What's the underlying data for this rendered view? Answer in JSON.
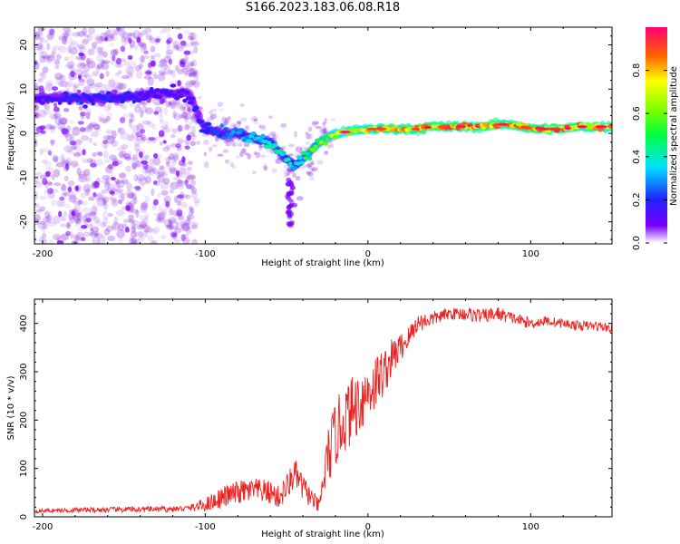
{
  "figure_title": "S166.2023.183.06.08.R18",
  "colors": {
    "snr_line": "#ee2020",
    "scatter": "#8a2be2",
    "axis": "#000000"
  },
  "chart_data": [
    {
      "type": "heatmap",
      "title": "S166.2023.183.06.08.R18",
      "xlabel": "Height of straight line (km)",
      "ylabel": "Frequency (Hz)",
      "xlim": [
        -205,
        150
      ],
      "ylim": [
        -25,
        24
      ],
      "xticks": [
        -200,
        -100,
        0,
        100
      ],
      "yticks": [
        -20,
        -10,
        0,
        10,
        20
      ],
      "grid": false,
      "track": {
        "x": [
          -200,
          -190,
          -180,
          -170,
          -160,
          -150,
          -140,
          -130,
          -120,
          -110,
          -100,
          -90,
          -80,
          -70,
          -60,
          -55,
          -50,
          -45,
          -40,
          -35,
          -30,
          -25,
          -20,
          -10,
          0,
          10,
          20,
          30,
          40,
          50,
          60,
          70,
          80,
          90,
          100,
          110,
          120,
          130,
          140,
          150
        ],
        "freq": [
          8,
          8,
          8,
          8,
          8,
          8,
          8.5,
          9,
          9,
          9,
          1,
          0,
          0,
          -1,
          -2,
          -4,
          -6,
          -7,
          -6,
          -4,
          -2,
          -1,
          0,
          0.5,
          1,
          1,
          1,
          1,
          1.5,
          1.5,
          1.5,
          1.5,
          2,
          2,
          1,
          1,
          1,
          1.5,
          1.5,
          1.5
        ],
        "amplitude": [
          0.15,
          0.15,
          0.2,
          0.2,
          0.2,
          0.18,
          0.18,
          0.15,
          0.15,
          0.15,
          0.2,
          0.25,
          0.3,
          0.35,
          0.4,
          0.45,
          0.4,
          0.35,
          0.5,
          0.55,
          0.6,
          0.65,
          0.7,
          0.75,
          0.8,
          0.85,
          0.85,
          0.9,
          0.85,
          0.9,
          0.85,
          0.9,
          0.9,
          0.85,
          0.9,
          0.9,
          0.9,
          0.85,
          0.8,
          0.8
        ]
      },
      "colorbar": {
        "label": "Normalized spectral amplitude",
        "range": [
          0,
          1
        ],
        "ticks": [
          "0.0",
          "0.2",
          "0.4",
          "0.6",
          "0.8"
        ],
        "tick_values": [
          0,
          0.2,
          0.4,
          0.6,
          0.8
        ]
      }
    },
    {
      "type": "line",
      "xlabel": "Height of straight line (km)",
      "ylabel": "SNR (10 * v/v)",
      "xlim": [
        -205,
        150
      ],
      "ylim": [
        0,
        450
      ],
      "xticks": [
        -200,
        -100,
        0,
        100
      ],
      "yticks": [
        0,
        100,
        200,
        300,
        400
      ],
      "grid": false,
      "series": [
        {
          "name": "SNR",
          "x": [
            -205,
            -180,
            -150,
            -120,
            -110,
            -100,
            -90,
            -80,
            -70,
            -60,
            -55,
            -50,
            -45,
            -40,
            -35,
            -30,
            -25,
            -20,
            -15,
            -10,
            -5,
            0,
            5,
            10,
            15,
            20,
            25,
            30,
            40,
            50,
            60,
            70,
            80,
            90,
            100,
            110,
            120,
            130,
            140,
            150
          ],
          "y": [
            12,
            14,
            15,
            16,
            18,
            25,
            40,
            50,
            55,
            50,
            40,
            60,
            90,
            60,
            40,
            20,
            120,
            170,
            200,
            220,
            240,
            260,
            280,
            300,
            330,
            350,
            370,
            400,
            410,
            420,
            420,
            415,
            420,
            410,
            400,
            405,
            400,
            395,
            395,
            390
          ],
          "noise": [
            4,
            5,
            6,
            6,
            6,
            15,
            22,
            25,
            25,
            25,
            25,
            30,
            30,
            30,
            20,
            15,
            60,
            70,
            70,
            70,
            70,
            60,
            60,
            50,
            40,
            30,
            25,
            20,
            15,
            12,
            15,
            15,
            15,
            12,
            12,
            10,
            10,
            10,
            10,
            10
          ]
        }
      ]
    }
  ]
}
